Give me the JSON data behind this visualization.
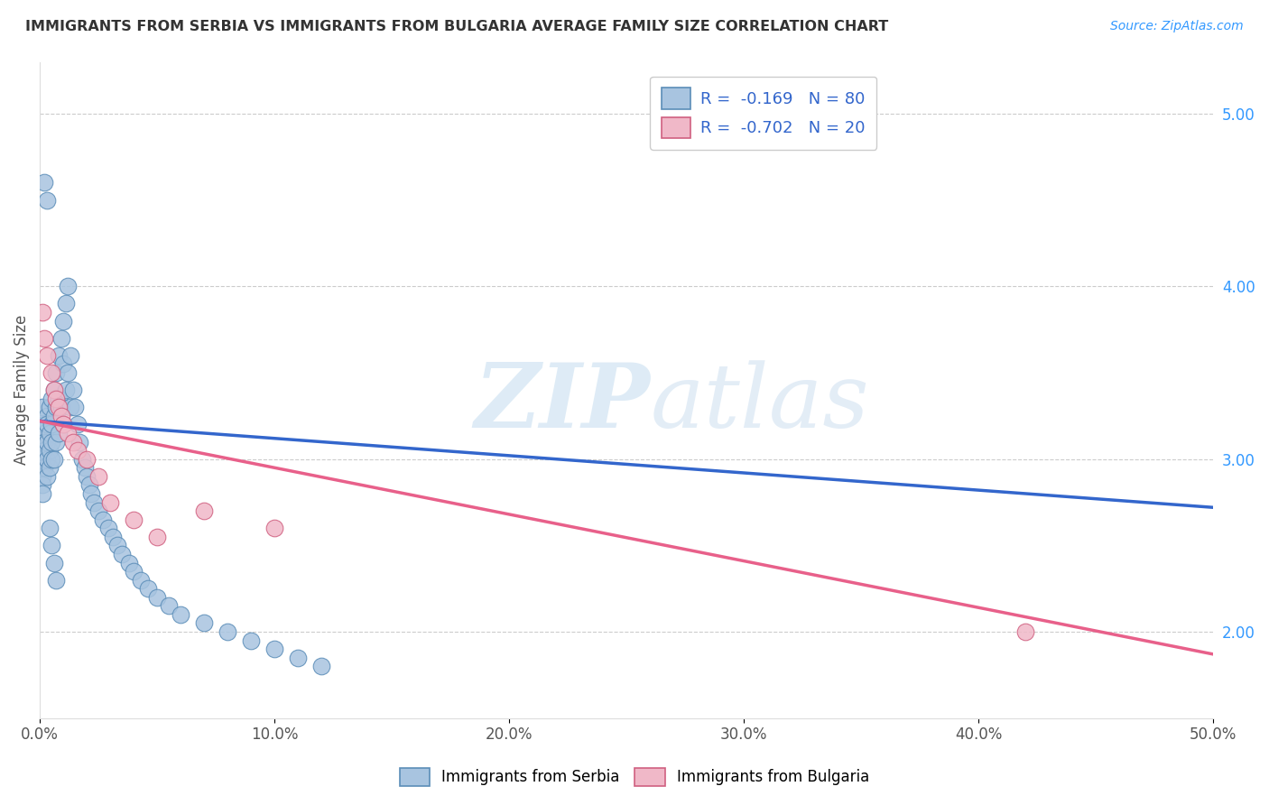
{
  "title": "IMMIGRANTS FROM SERBIA VS IMMIGRANTS FROM BULGARIA AVERAGE FAMILY SIZE CORRELATION CHART",
  "source": "Source: ZipAtlas.com",
  "ylabel": "Average Family Size",
  "xlim": [
    0.0,
    0.5
  ],
  "ylim": [
    1.5,
    5.3
  ],
  "right_yticks": [
    2.0,
    3.0,
    4.0,
    5.0
  ],
  "bottom_xtick_labels": [
    "0.0%",
    "10.0%",
    "20.0%",
    "30.0%",
    "40.0%",
    "50.0%"
  ],
  "serbia_color": "#a8c4e0",
  "serbia_edge_color": "#5b8db8",
  "bulgaria_color": "#f0b8c8",
  "bulgaria_edge_color": "#d06080",
  "serbia_line_color": "#3366cc",
  "bulgaria_line_color": "#e8608a",
  "dashed_line_color": "#aaccee",
  "serbia_R": -0.169,
  "serbia_N": 80,
  "bulgaria_R": -0.702,
  "bulgaria_N": 20,
  "watermark_zip": "ZIP",
  "watermark_atlas": "atlas",
  "legend_R_color": "#3366cc",
  "serbia_line_x0": 0.0,
  "serbia_line_y0": 3.22,
  "serbia_line_x1": 0.5,
  "serbia_line_y1": 2.72,
  "bulgaria_line_x0": 0.0,
  "bulgaria_line_y0": 3.22,
  "bulgaria_line_x1": 0.5,
  "bulgaria_line_y1": 1.87,
  "serbia_scatter_x": [
    0.001,
    0.001,
    0.001,
    0.001,
    0.001,
    0.001,
    0.001,
    0.002,
    0.002,
    0.002,
    0.002,
    0.002,
    0.003,
    0.003,
    0.003,
    0.003,
    0.003,
    0.004,
    0.004,
    0.004,
    0.004,
    0.005,
    0.005,
    0.005,
    0.005,
    0.006,
    0.006,
    0.006,
    0.007,
    0.007,
    0.007,
    0.008,
    0.008,
    0.008,
    0.009,
    0.009,
    0.01,
    0.01,
    0.01,
    0.011,
    0.011,
    0.012,
    0.012,
    0.013,
    0.013,
    0.014,
    0.015,
    0.016,
    0.017,
    0.018,
    0.019,
    0.02,
    0.021,
    0.022,
    0.023,
    0.025,
    0.027,
    0.029,
    0.031,
    0.033,
    0.035,
    0.038,
    0.04,
    0.043,
    0.046,
    0.05,
    0.055,
    0.06,
    0.07,
    0.08,
    0.09,
    0.1,
    0.11,
    0.12,
    0.002,
    0.003,
    0.004,
    0.005,
    0.006,
    0.007
  ],
  "serbia_scatter_y": [
    3.3,
    3.1,
    3.0,
    2.95,
    2.9,
    2.85,
    2.8,
    3.2,
    3.15,
    3.1,
    3.05,
    2.95,
    3.25,
    3.2,
    3.1,
    3.0,
    2.9,
    3.3,
    3.15,
    3.05,
    2.95,
    3.35,
    3.2,
    3.1,
    3.0,
    3.4,
    3.25,
    3.0,
    3.5,
    3.3,
    3.1,
    3.6,
    3.35,
    3.15,
    3.7,
    3.3,
    3.8,
    3.55,
    3.2,
    3.9,
    3.4,
    4.0,
    3.5,
    3.6,
    3.3,
    3.4,
    3.3,
    3.2,
    3.1,
    3.0,
    2.95,
    2.9,
    2.85,
    2.8,
    2.75,
    2.7,
    2.65,
    2.6,
    2.55,
    2.5,
    2.45,
    2.4,
    2.35,
    2.3,
    2.25,
    2.2,
    2.15,
    2.1,
    2.05,
    2.0,
    1.95,
    1.9,
    1.85,
    1.8,
    4.6,
    4.5,
    2.6,
    2.5,
    2.4,
    2.3
  ],
  "bulgaria_scatter_x": [
    0.001,
    0.002,
    0.003,
    0.005,
    0.006,
    0.007,
    0.008,
    0.009,
    0.01,
    0.012,
    0.014,
    0.016,
    0.02,
    0.025,
    0.03,
    0.04,
    0.05,
    0.07,
    0.1,
    0.42
  ],
  "bulgaria_scatter_y": [
    3.85,
    3.7,
    3.6,
    3.5,
    3.4,
    3.35,
    3.3,
    3.25,
    3.2,
    3.15,
    3.1,
    3.05,
    3.0,
    2.9,
    2.75,
    2.65,
    2.55,
    2.7,
    2.6,
    2.0
  ]
}
